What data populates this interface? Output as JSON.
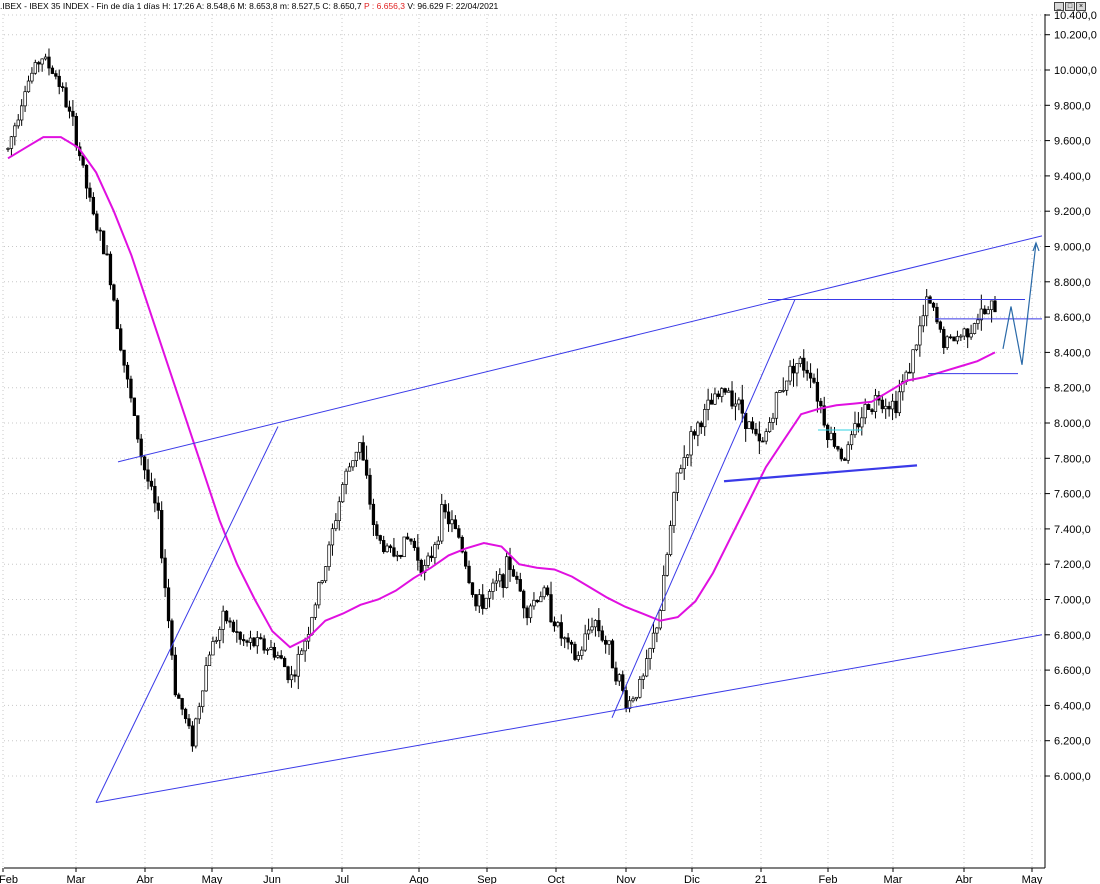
{
  "header": {
    "symbol": ".IBEX",
    "name": "IBEX 35 INDEX",
    "period": "Fin de día 1 días",
    "time": "H: 17:26",
    "open": "A: 8.548,6",
    "high": "M: 8.653,8",
    "low": "m: 8.527,5",
    "close": "C: 8.650,7",
    "perf": "P : 6.656,3",
    "volume": "V: 96.629",
    "date": "F: 22/04/2021"
  },
  "colors": {
    "ma": "#e010e0",
    "trend": "#3a3ae8",
    "projection": "#2a6aa8",
    "cyan": "#30d0e0",
    "grid": "#c8c8c8",
    "candle": "#000000"
  },
  "chart_data": {
    "type": "candlestick",
    "title": "",
    "y_axis": {
      "side": "right",
      "min": 5800,
      "max": 10400,
      "ticks": [
        {
          "value": 10400,
          "label": "10.400,0"
        },
        {
          "value": 10200,
          "label": "10.200,0"
        },
        {
          "value": 10000,
          "label": "10.000,0"
        },
        {
          "value": 9800,
          "label": "9.800,0"
        },
        {
          "value": 9600,
          "label": "9.600,0"
        },
        {
          "value": 9400,
          "label": "9.400,0"
        },
        {
          "value": 9200,
          "label": "9.200,0"
        },
        {
          "value": 9000,
          "label": "9.000,0"
        },
        {
          "value": 8800,
          "label": "8.800,0"
        },
        {
          "value": 8600,
          "label": "8.600,0"
        },
        {
          "value": 8400,
          "label": "8.400,0"
        },
        {
          "value": 8200,
          "label": "8.200,0"
        },
        {
          "value": 8000,
          "label": "8.000,0"
        },
        {
          "value": 7800,
          "label": "7.800,0"
        },
        {
          "value": 7600,
          "label": "7.600,0"
        },
        {
          "value": 7400,
          "label": "7.400,0"
        },
        {
          "value": 7200,
          "label": "7.200,0"
        },
        {
          "value": 7000,
          "label": "7.000,0"
        },
        {
          "value": 6800,
          "label": "6.800,0"
        },
        {
          "value": 6600,
          "label": "6.600,0"
        },
        {
          "value": 6400,
          "label": "6.400,0"
        },
        {
          "value": 6200,
          "label": "6.200,0"
        },
        {
          "value": 6000,
          "label": "6.000,0"
        }
      ]
    },
    "x_axis": {
      "labels": [
        "Feb",
        "Mar",
        "Abr",
        "May",
        "Jun",
        "Jul",
        "Ago",
        "Sep",
        "Oct",
        "Nov",
        "Dic",
        "21",
        "Feb",
        "Mar",
        "Abr",
        "May"
      ]
    },
    "price_path": [
      [
        "Feb",
        9550
      ],
      [
        "Feb",
        9900
      ],
      [
        "Feb",
        10080
      ],
      [
        "Mar",
        9950
      ],
      [
        "Mar",
        9650
      ],
      [
        "Mar",
        9200
      ],
      [
        "Mar",
        8900
      ],
      [
        "Mar",
        8300
      ],
      [
        "Mar",
        7800
      ],
      [
        "Mar",
        7450
      ],
      [
        "Mar",
        6500
      ],
      [
        "Mar",
        6200
      ],
      [
        "Abr",
        6700
      ],
      [
        "Abr",
        6900
      ],
      [
        "Abr",
        6750
      ],
      [
        "May",
        6750
      ],
      [
        "May",
        6700
      ],
      [
        "May",
        6550
      ],
      [
        "May",
        6850
      ],
      [
        "Jun",
        7200
      ],
      [
        "Jun",
        7650
      ],
      [
        "Jun",
        7900
      ],
      [
        "Jun",
        7350
      ],
      [
        "Jun",
        7250
      ],
      [
        "Jul",
        7350
      ],
      [
        "Jul",
        7150
      ],
      [
        "Jul",
        7500
      ],
      [
        "Jul",
        7350
      ],
      [
        "Ago",
        6950
      ],
      [
        "Ago",
        7050
      ],
      [
        "Ago",
        7200
      ],
      [
        "Sep",
        6950
      ],
      [
        "Sep",
        7050
      ],
      [
        "Sep",
        6800
      ],
      [
        "Oct",
        6650
      ],
      [
        "Oct",
        6900
      ],
      [
        "Oct",
        6700
      ],
      [
        "Oct",
        6400
      ],
      [
        "Nov",
        6550
      ],
      [
        "Nov",
        6950
      ],
      [
        "Nov",
        7700
      ],
      [
        "Nov",
        7950
      ],
      [
        "Dic",
        8100
      ],
      [
        "Dic",
        8200
      ],
      [
        "Dic",
        8050
      ],
      [
        "Dic",
        7850
      ],
      [
        "21",
        8150
      ],
      [
        "21",
        8350
      ],
      [
        "21",
        8300
      ],
      [
        "Feb",
        7950
      ],
      [
        "Feb",
        7800
      ],
      [
        "Feb",
        8050
      ],
      [
        "Feb",
        8150
      ],
      [
        "Mar",
        8100
      ],
      [
        "Mar",
        8350
      ],
      [
        "Mar",
        8700
      ],
      [
        "Mar",
        8450
      ],
      [
        "Abr",
        8500
      ],
      [
        "Abr",
        8600
      ],
      [
        "Abr",
        8650
      ]
    ],
    "moving_average": [
      9500,
      9560,
      9620,
      9620,
      9560,
      9420,
      9200,
      8950,
      8650,
      8350,
      8050,
      7750,
      7450,
      7200,
      7000,
      6820,
      6730,
      6780,
      6880,
      6920,
      6970,
      7000,
      7050,
      7120,
      7180,
      7250,
      7290,
      7320,
      7300,
      7200,
      7180,
      7170,
      7130,
      7070,
      7010,
      6960,
      6920,
      6880,
      6900,
      6990,
      7150,
      7350,
      7550,
      7750,
      7900,
      8050,
      8080,
      8100,
      8110,
      8120,
      8180,
      8240,
      8260,
      8290,
      8320,
      8350,
      8400
    ],
    "trendlines": [
      {
        "from": [
          "Mar",
          5850
        ],
        "to": [
          "May+",
          6800
        ],
        "style": "channel-lower"
      },
      {
        "from": [
          "Mar+",
          7780
        ],
        "to": [
          "May+",
          9060
        ],
        "style": "channel-upper"
      },
      {
        "from": [
          "Mar",
          5850
        ],
        "to": [
          "Jun",
          7980
        ],
        "style": "swing"
      },
      {
        "from": [
          "Oct",
          6330
        ],
        "to": [
          "21",
          8700
        ],
        "style": "swing"
      },
      {
        "from": [
          "21",
          8700
        ],
        "to": [
          "Abr",
          8700
        ],
        "style": "resistance"
      },
      {
        "from": [
          "Abr",
          8590
        ],
        "to": [
          "May",
          8590
        ],
        "style": "level"
      },
      {
        "from": [
          "Mar",
          8280
        ],
        "to": [
          "Abr",
          8280
        ],
        "style": "level"
      },
      {
        "from": [
          "Dic",
          7670
        ],
        "to": [
          "Feb",
          7760
        ],
        "style": "support-bold"
      }
    ],
    "projection": [
      8420,
      8660,
      8330,
      9020
    ]
  }
}
